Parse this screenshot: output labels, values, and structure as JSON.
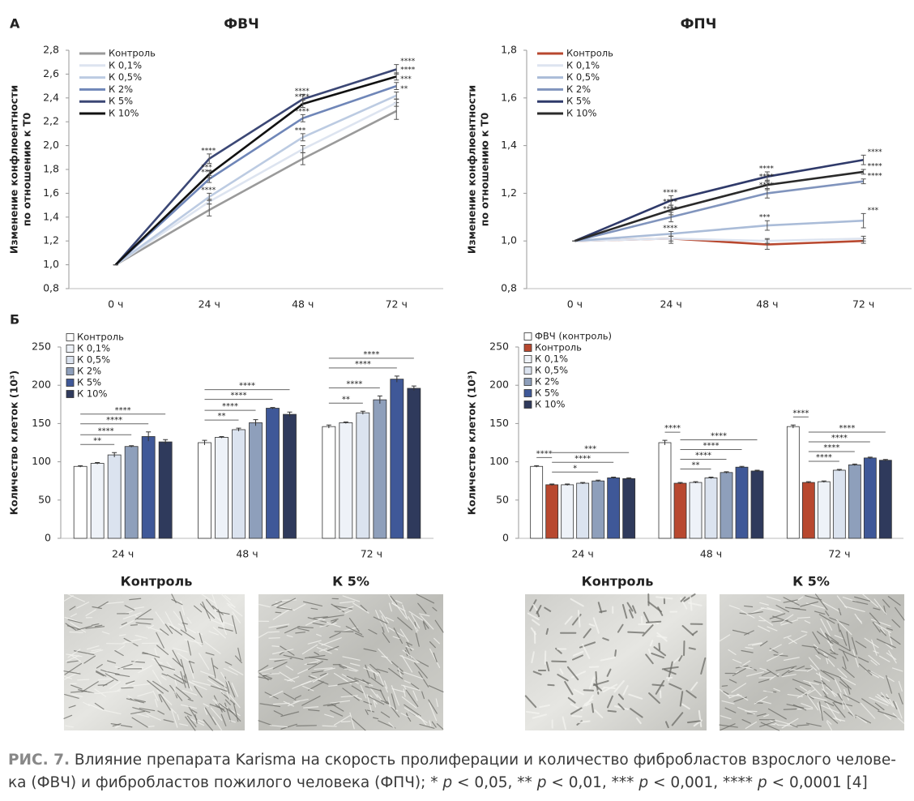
{
  "panel_labels": [
    "А",
    "Б"
  ],
  "chart_data": [
    {
      "type": "line",
      "title": "ФВЧ",
      "ylabel": [
        "Изменение конфлюентности",
        "по отношению к Т0"
      ],
      "categories": [
        "0 ч",
        "24 ч",
        "48 ч",
        "72 ч"
      ],
      "ylim": [
        0.8,
        2.8
      ],
      "yticks": [
        {
          "value": 0.8,
          "label": "0,8"
        },
        {
          "value": 1.0,
          "label": "1,0"
        },
        {
          "value": 1.2,
          "label": "1,2"
        },
        {
          "value": 1.4,
          "label": "1,4"
        },
        {
          "value": 1.6,
          "label": "1,6"
        },
        {
          "value": 1.8,
          "label": "1,8"
        },
        {
          "value": 2.0,
          "label": "2,0"
        },
        {
          "value": 2.2,
          "label": "2,2"
        },
        {
          "value": 2.4,
          "label": "2,4"
        },
        {
          "value": 2.6,
          "label": "2,6"
        },
        {
          "value": 2.8,
          "label": "2,8"
        }
      ],
      "legend": "top-left",
      "series": [
        {
          "name": "Контроль",
          "color": "#9a9a9a",
          "values": [
            1.0,
            1.46,
            1.89,
            2.29
          ],
          "errors": [
            0,
            0.05,
            0.05,
            0.07
          ],
          "significance": [
            null,
            null,
            null,
            null
          ]
        },
        {
          "name": "К 0,1%",
          "color": "#dde4f0",
          "values": [
            1.0,
            1.53,
            1.97,
            2.36
          ],
          "errors": [
            0,
            0.02,
            0.03,
            0.03
          ],
          "significance": [
            null,
            null,
            null,
            null
          ]
        },
        {
          "name": "К 0,5%",
          "color": "#bccbe2",
          "values": [
            1.0,
            1.57,
            2.07,
            2.42
          ],
          "errors": [
            0,
            0.03,
            0.03,
            0.03
          ],
          "significance": [
            null,
            "****",
            "***",
            "**"
          ]
        },
        {
          "name": "К 2%",
          "color": "#6f86b8",
          "values": [
            1.0,
            1.72,
            2.23,
            2.5
          ],
          "errors": [
            0,
            0.03,
            0.03,
            0.03
          ],
          "significance": [
            null,
            "***",
            "****",
            "***"
          ]
        },
        {
          "name": "К 5%",
          "color": "#3b4775",
          "values": [
            1.0,
            1.89,
            2.39,
            2.64
          ],
          "errors": [
            0,
            0.04,
            0.04,
            0.04
          ],
          "significance": [
            null,
            "****",
            "****",
            "****"
          ]
        },
        {
          "name": "К 10%",
          "color": "#111111",
          "values": [
            1.0,
            1.76,
            2.35,
            2.58
          ],
          "errors": [
            0,
            0.03,
            0.03,
            0.03
          ],
          "significance": [
            null,
            "***",
            "****",
            "****"
          ]
        }
      ]
    },
    {
      "type": "line",
      "title": "ФПЧ",
      "ylabel": [
        "Изменение конфлюентности",
        "по отношению к Т0"
      ],
      "categories": [
        "0 ч",
        "24 ч",
        "48 ч",
        "72 ч"
      ],
      "ylim": [
        0.8,
        1.8
      ],
      "yticks": [
        {
          "value": 0.8,
          "label": "0,8"
        },
        {
          "value": 1.0,
          "label": "1,0"
        },
        {
          "value": 1.2,
          "label": "1,2"
        },
        {
          "value": 1.4,
          "label": "1,4"
        },
        {
          "value": 1.6,
          "label": "1,6"
        },
        {
          "value": 1.8,
          "label": "1,8"
        }
      ],
      "legend": "top-left",
      "series": [
        {
          "name": "Контроль",
          "color": "#b8482f",
          "values": [
            1.0,
            1.01,
            0.985,
            1.0
          ],
          "errors": [
            0,
            0.02,
            0.02,
            0.01
          ],
          "significance": [
            null,
            null,
            null,
            null
          ]
        },
        {
          "name": "К 0,1%",
          "color": "#dde4f0",
          "values": [
            1.0,
            1.01,
            1.0,
            1.01
          ],
          "errors": [
            0,
            0.01,
            0.01,
            0.01
          ],
          "significance": [
            null,
            null,
            null,
            null
          ]
        },
        {
          "name": "К 0,5%",
          "color": "#aabcd8",
          "values": [
            1.0,
            1.03,
            1.065,
            1.085
          ],
          "errors": [
            0,
            0.01,
            0.02,
            0.03
          ],
          "significance": [
            null,
            "****",
            "***",
            "***"
          ]
        },
        {
          "name": "К 2%",
          "color": "#8094bd",
          "values": [
            1.0,
            1.1,
            1.2,
            1.25
          ],
          "errors": [
            0,
            0.02,
            0.02,
            0.01
          ],
          "significance": [
            null,
            "****",
            "****",
            "****"
          ]
        },
        {
          "name": "К 5%",
          "color": "#2f3a6a",
          "values": [
            1.0,
            1.17,
            1.27,
            1.34
          ],
          "errors": [
            0,
            0.02,
            0.02,
            0.02
          ],
          "significance": [
            null,
            "****",
            "****",
            "****"
          ]
        },
        {
          "name": "К 10%",
          "color": "#2a2a2a",
          "values": [
            1.0,
            1.13,
            1.235,
            1.29
          ],
          "errors": [
            0,
            0.02,
            0.02,
            0.01
          ],
          "significance": [
            null,
            "****",
            "****",
            "****"
          ]
        }
      ]
    },
    {
      "type": "bar",
      "ylabel": "Количество клеток (10³)",
      "categories": [
        "24 ч",
        "48 ч",
        "72 ч"
      ],
      "ylim": [
        0,
        250
      ],
      "yticks": [
        0,
        50,
        100,
        150,
        200,
        250
      ],
      "legend": "top-left",
      "reference_series": 0,
      "series": [
        {
          "name": "Контроль",
          "color": "#ffffff",
          "values": [
            94,
            125,
            146
          ],
          "errors": [
            1,
            3,
            2
          ],
          "significance": [
            null,
            null,
            null
          ]
        },
        {
          "name": "К 0,1%",
          "color": "#eef2f8",
          "values": [
            98,
            132,
            151
          ],
          "errors": [
            1,
            1,
            1
          ],
          "significance": [
            null,
            null,
            null
          ]
        },
        {
          "name": "К 0,5%",
          "color": "#dbe3ef",
          "values": [
            109,
            142,
            164
          ],
          "errors": [
            3,
            2,
            2
          ],
          "significance": [
            "**",
            "**",
            "**"
          ]
        },
        {
          "name": "К 2%",
          "color": "#8e9fbb",
          "values": [
            120,
            151,
            181
          ],
          "errors": [
            1,
            4,
            5
          ],
          "significance": [
            "****",
            "****",
            "****"
          ]
        },
        {
          "name": "К 5%",
          "color": "#3f5898",
          "values": [
            133,
            170,
            208
          ],
          "errors": [
            6,
            1,
            4
          ],
          "significance": [
            "****",
            "****",
            "****"
          ]
        },
        {
          "name": "К 10%",
          "color": "#2f3a5c",
          "values": [
            126,
            162,
            196
          ],
          "errors": [
            3,
            3,
            3
          ],
          "significance": [
            "****",
            "****",
            "****"
          ]
        }
      ]
    },
    {
      "type": "bar",
      "ylabel": "Количество клеток (10³)",
      "categories": [
        "24 ч",
        "48 ч",
        "72 ч"
      ],
      "ylim": [
        0,
        250
      ],
      "yticks": [
        0,
        50,
        100,
        150,
        200,
        250
      ],
      "legend": "top-left",
      "reference_series": 1,
      "series": [
        {
          "name": "ФВЧ (контроль)",
          "color": "#ffffff",
          "values": [
            94,
            125,
            146
          ],
          "errors": [
            1,
            3,
            2
          ],
          "significance": [
            "****",
            "****",
            "****"
          ]
        },
        {
          "name": "Контроль",
          "color": "#b8482f",
          "values": [
            70,
            72,
            73
          ],
          "errors": [
            1,
            1,
            1
          ],
          "significance": [
            null,
            null,
            null
          ]
        },
        {
          "name": "К 0,1%",
          "color": "#eef2f8",
          "values": [
            70,
            73,
            74
          ],
          "errors": [
            1,
            1,
            1
          ],
          "significance": [
            null,
            null,
            null
          ]
        },
        {
          "name": "К 0,5%",
          "color": "#dbe3ef",
          "values": [
            72,
            79,
            89
          ],
          "errors": [
            1,
            1,
            1
          ],
          "significance": [
            null,
            "**",
            "****"
          ]
        },
        {
          "name": "К 2%",
          "color": "#8e9fbb",
          "values": [
            75,
            86,
            96
          ],
          "errors": [
            1,
            1,
            1
          ],
          "significance": [
            "*",
            "****",
            "****"
          ]
        },
        {
          "name": "К 5%",
          "color": "#3f5898",
          "values": [
            79,
            93,
            105
          ],
          "errors": [
            1,
            1,
            1
          ],
          "significance": [
            "****",
            "****",
            "****"
          ]
        },
        {
          "name": "К 10%",
          "color": "#2f3a5c",
          "values": [
            78,
            88,
            102
          ],
          "errors": [
            1,
            1,
            1
          ],
          "significance": [
            "***",
            "****",
            "****"
          ]
        }
      ]
    }
  ],
  "photo_labels": [
    "Контроль",
    "К 5%",
    "Контроль",
    "К 5%"
  ],
  "caption": {
    "label": "РИС. 7.",
    "parts": [
      {
        "text": " Влияние препарата Karisma на скорость пролиферации и количество фибробластов взрослого челове-ка (ФВЧ) и фибробластов пожилого человека (ФПЧ); * "
      },
      {
        "text": "p",
        "italic": true
      },
      {
        "text": " < 0,05, ** "
      },
      {
        "text": "p",
        "italic": true
      },
      {
        "text": " < 0,01, *** "
      },
      {
        "text": "p",
        "italic": true
      },
      {
        "text": " < 0,001, **** "
      },
      {
        "text": "p",
        "italic": true
      },
      {
        "text": " < 0,0001 [4]"
      }
    ]
  }
}
